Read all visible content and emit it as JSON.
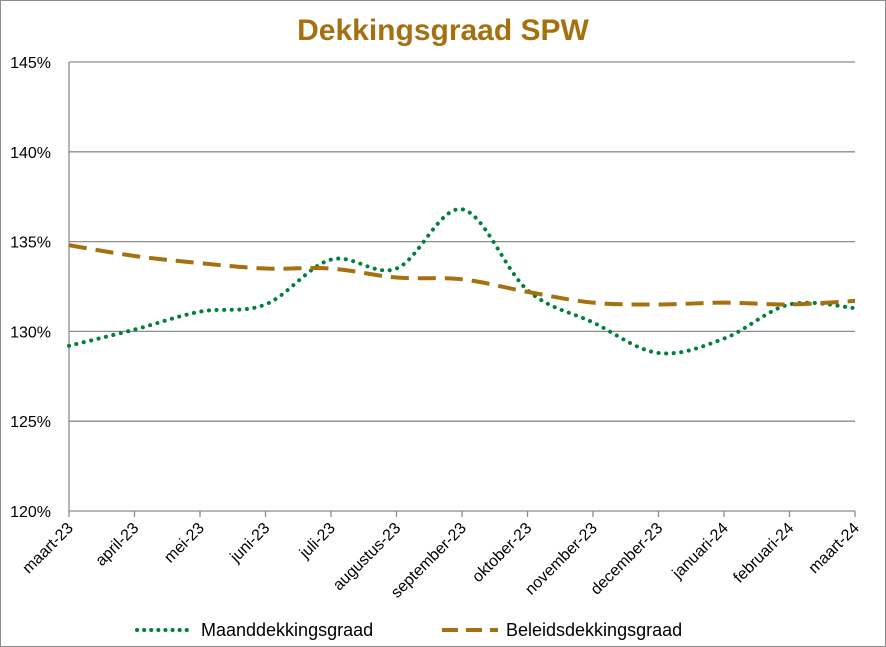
{
  "chart_data": {
    "type": "line",
    "title": "Dekkingsgraad  SPW",
    "xlabel": "",
    "ylabel": "",
    "categories": [
      "maart-23",
      "april-23",
      "mei-23",
      "juni-23",
      "juli-23",
      "augustus-23",
      "september-23",
      "oktober-23",
      "november-23",
      "december-23",
      "januari-24",
      "februari-24",
      "maart-24"
    ],
    "y_ticks": [
      "120%",
      "125%",
      "130%",
      "135%",
      "140%",
      "145%"
    ],
    "ylim": [
      120,
      145
    ],
    "grid": true,
    "legend_position": "bottom",
    "series": [
      {
        "name": "Maanddekkingsgraad",
        "style": "dotted",
        "color": "#00803c",
        "values": [
          129.2,
          130.1,
          131.1,
          131.5,
          134.0,
          133.5,
          136.8,
          132.3,
          130.5,
          128.8,
          129.6,
          131.5,
          131.3
        ]
      },
      {
        "name": "Beleidsdekkingsgraad",
        "style": "dashed",
        "color": "#a5700f",
        "values": [
          134.8,
          134.2,
          133.8,
          133.5,
          133.5,
          133.0,
          132.9,
          132.2,
          131.6,
          131.5,
          131.6,
          131.5,
          131.7
        ]
      }
    ]
  }
}
